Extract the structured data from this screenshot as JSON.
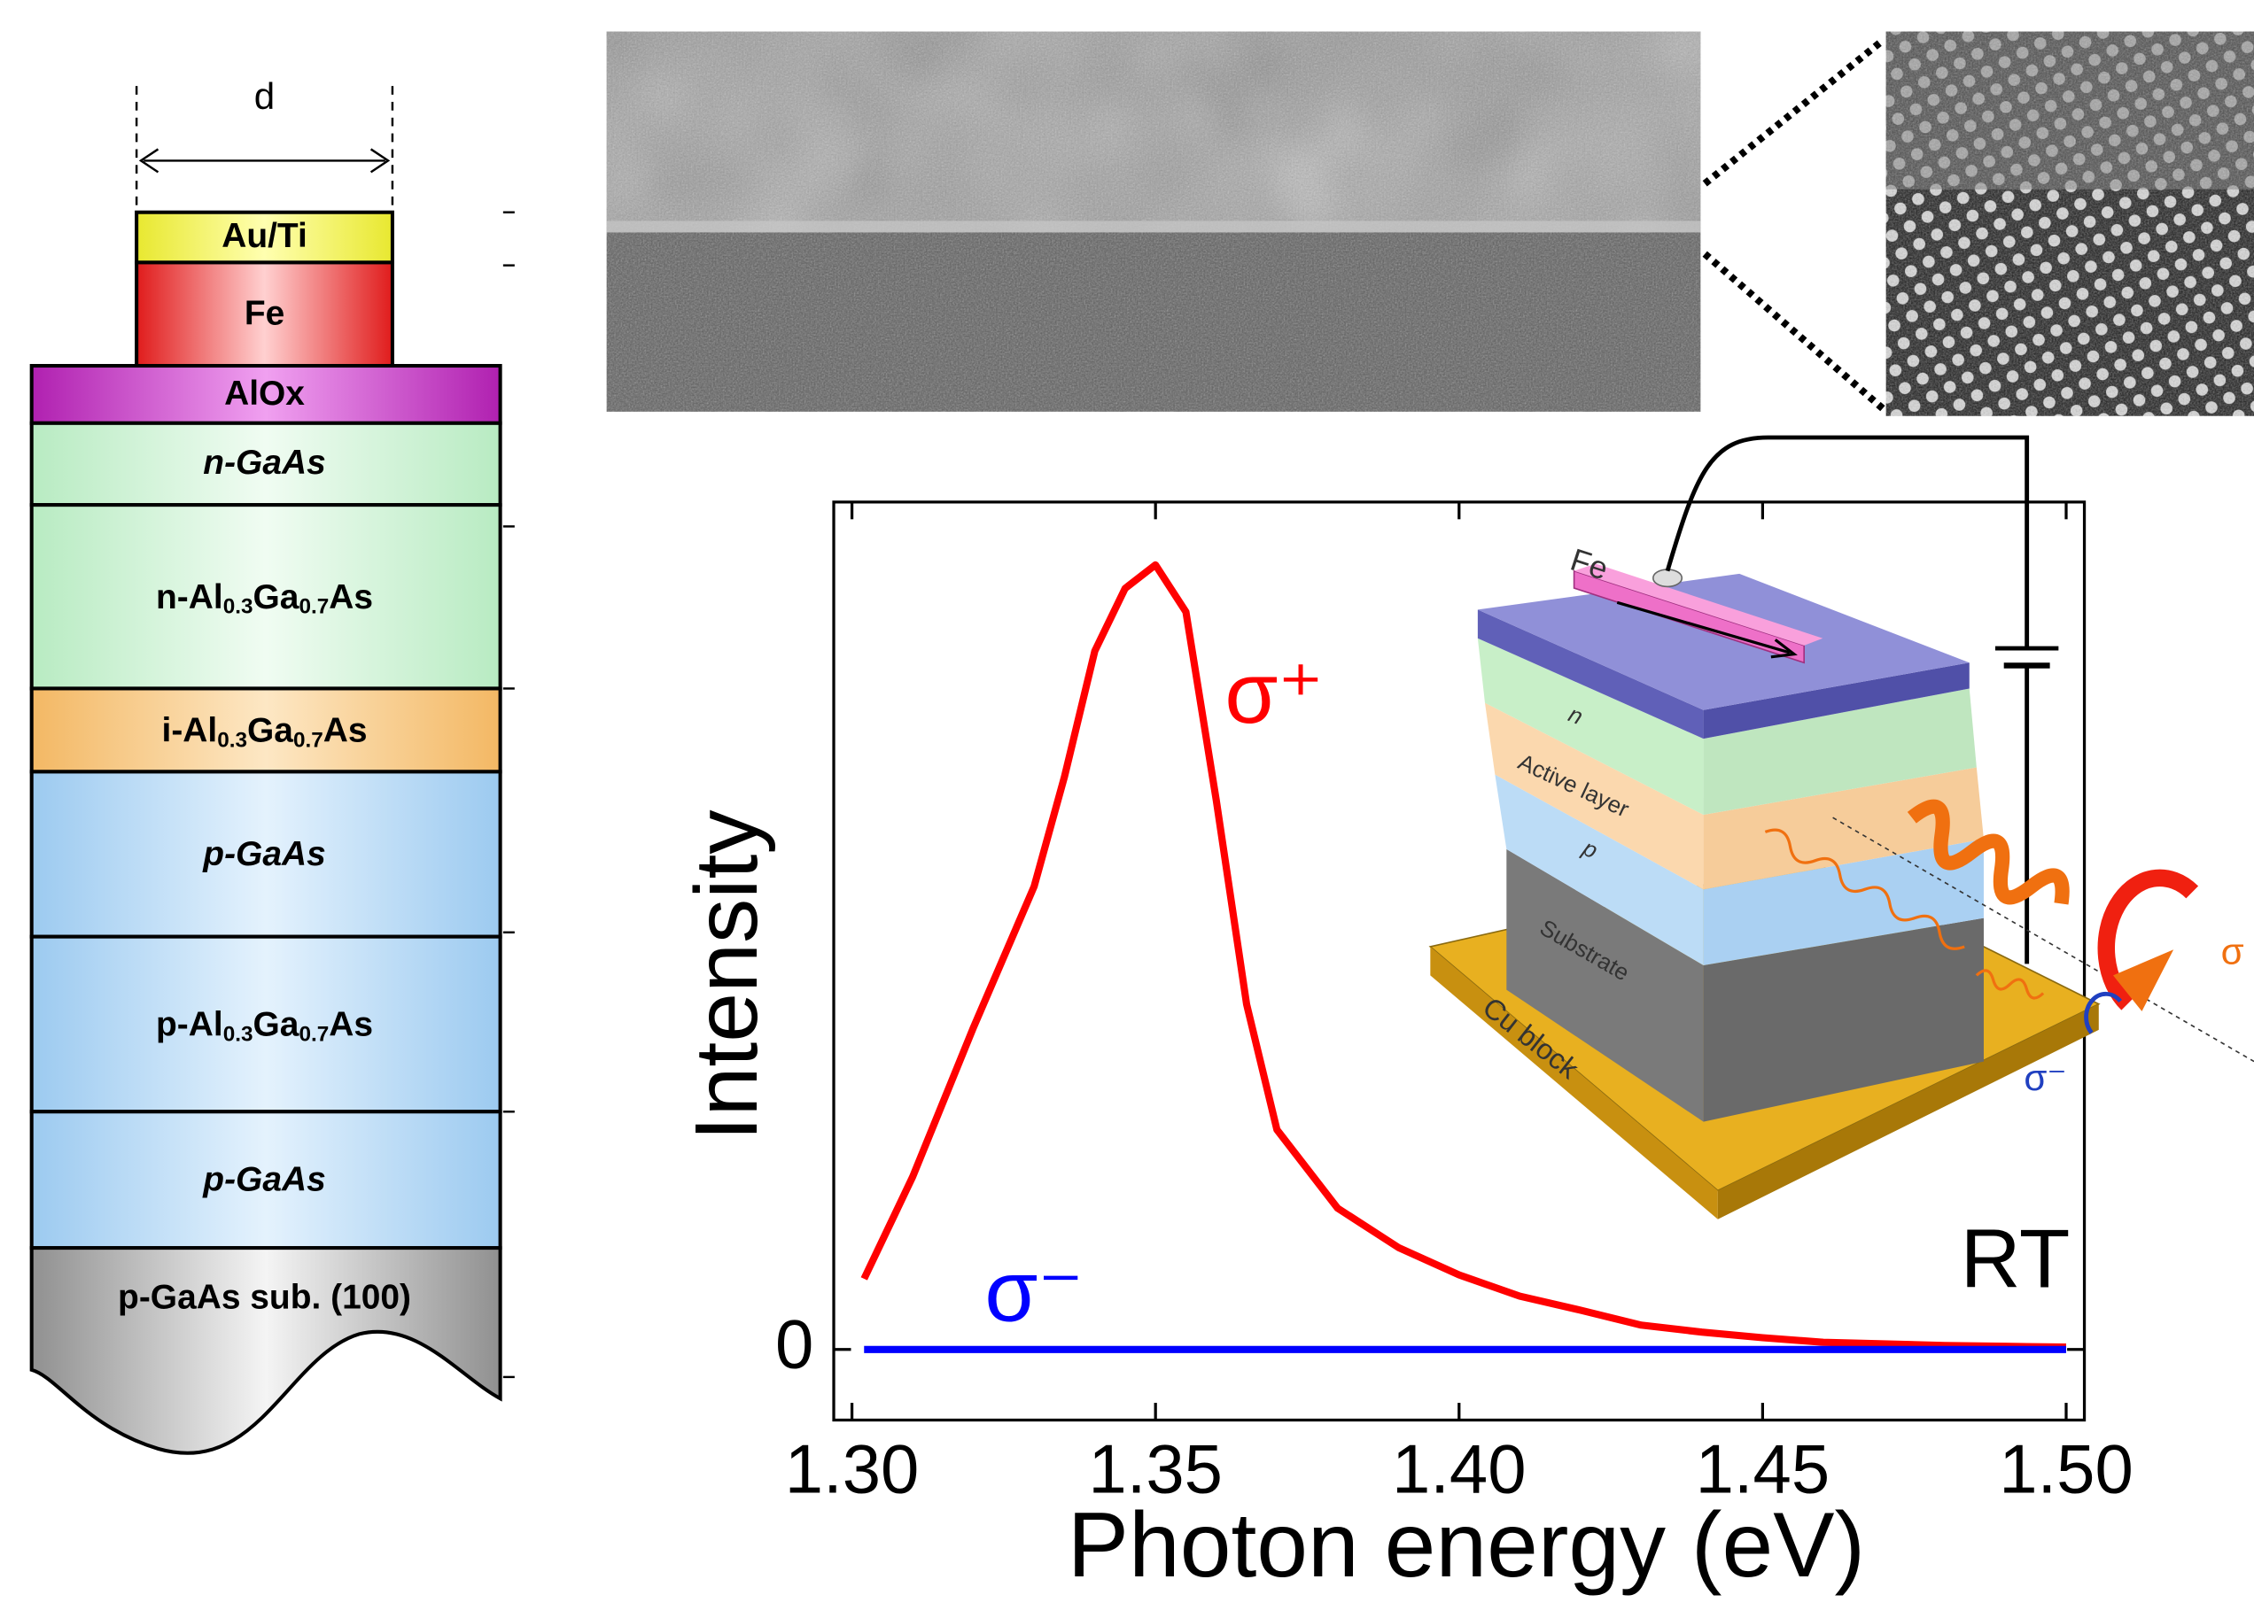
{
  "chart_data": {
    "type": "line",
    "xlabel": "Photon energy (eV)",
    "ylabel": "Intensity",
    "annotation": "RT",
    "x": [
      1.302,
      1.31,
      1.32,
      1.33,
      1.335,
      1.34,
      1.345,
      1.35,
      1.355,
      1.36,
      1.365,
      1.37,
      1.38,
      1.39,
      1.4,
      1.41,
      1.42,
      1.43,
      1.44,
      1.45,
      1.46,
      1.47,
      1.48,
      1.49,
      1.5
    ],
    "series": [
      {
        "name": "σ⁺",
        "color": "#ff0000",
        "values": [
          0.09,
          0.22,
          0.41,
          0.59,
          0.73,
          0.89,
          0.97,
          1.0,
          0.94,
          0.7,
          0.44,
          0.28,
          0.18,
          0.13,
          0.095,
          0.068,
          0.05,
          0.031,
          0.022,
          0.015,
          0.009,
          0.007,
          0.005,
          0.004,
          0.003
        ]
      },
      {
        "name": "σ⁻",
        "color": "#0000ff",
        "values": [
          0,
          0,
          0,
          0,
          0,
          0,
          0,
          0,
          0,
          0,
          0,
          0,
          0,
          0,
          0,
          0,
          0,
          0,
          0,
          0,
          0,
          0,
          0,
          0,
          0
        ]
      }
    ],
    "xlim": [
      1.297,
      1.503
    ],
    "xticks": [
      {
        "value": 1.3,
        "label": "1.30"
      },
      {
        "value": 1.35,
        "label": "1.35"
      },
      {
        "value": 1.4,
        "label": "1.40"
      },
      {
        "value": 1.45,
        "label": "1.45"
      },
      {
        "value": 1.5,
        "label": "1.50"
      }
    ],
    "ylim": [
      -0.09,
      1.08
    ],
    "yticks": [
      0
    ]
  },
  "layer_stack": {
    "width_label": "d",
    "layers": [
      [
        "Au/Ti"
      ],
      [
        "Fe"
      ],
      [
        "AlOx"
      ],
      [
        "n-GaAs"
      ],
      [
        "n-Al",
        "0.3",
        "Ga",
        "0.7",
        "As"
      ],
      [
        "i-Al",
        "0.3",
        "Ga",
        "0.7",
        "As"
      ],
      [
        "p-GaAs"
      ],
      [
        "p-Al",
        "0.3",
        "Ga",
        "0.7",
        "As"
      ],
      [
        "p-GaAs"
      ],
      [
        "p-GaAs sub. (100)"
      ]
    ]
  },
  "inset": {
    "labels": [
      "Fe",
      "n",
      "Active layer",
      "p",
      "Substrate",
      "Cu block",
      "σ⁻",
      "σ"
    ]
  }
}
